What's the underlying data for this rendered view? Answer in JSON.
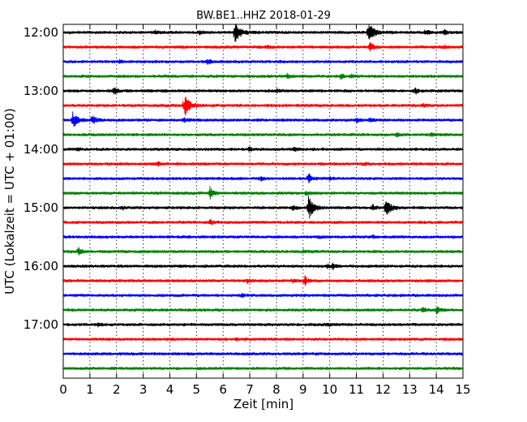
{
  "chart_data": {
    "type": "line",
    "title": "BW.BE1..HHZ 2018-01-29",
    "xlabel": "Zeit  [min]",
    "ylabel": "UTC (Lokalzeit = UTC + 01:00)",
    "xlim": [
      0,
      15
    ],
    "x_ticks": [
      "0",
      "1",
      "2",
      "3",
      "4",
      "5",
      "6",
      "7",
      "8",
      "9",
      "10",
      "11",
      "12",
      "13",
      "14",
      "15"
    ],
    "y_tick_labels": [
      "12:00",
      "13:00",
      "14:00",
      "15:00",
      "16:00",
      "17:00"
    ],
    "grid": "vertical-dotted",
    "trace_colors": [
      "#000000",
      "#ff0000",
      "#0000ff",
      "#008000"
    ],
    "traces": [
      {
        "start": "12:00",
        "events": [
          {
            "t": 6.45,
            "amp": 15
          },
          {
            "t": 11.45,
            "amp": 15
          },
          {
            "t": 13.6,
            "amp": 4
          },
          {
            "t": 14.3,
            "amp": 4
          },
          {
            "t": 3.45,
            "amp": 2
          },
          {
            "t": 5.1,
            "amp": 2
          }
        ]
      },
      {
        "start": "12:15",
        "events": [
          {
            "t": 11.5,
            "amp": 8
          },
          {
            "t": 14.3,
            "amp": 2
          },
          {
            "t": 7.6,
            "amp": 2
          }
        ]
      },
      {
        "start": "12:30",
        "events": [
          {
            "t": 5.4,
            "amp": 4
          },
          {
            "t": 2.1,
            "amp": 1.5
          }
        ]
      },
      {
        "start": "12:45",
        "events": [
          {
            "t": 8.4,
            "amp": 3
          },
          {
            "t": 10.4,
            "amp": 3
          },
          {
            "t": 10.8,
            "amp": 2
          }
        ]
      },
      {
        "start": "13:00",
        "events": [
          {
            "t": 1.9,
            "amp": 5
          },
          {
            "t": 13.2,
            "amp": 4
          },
          {
            "t": 8.0,
            "amp": 2
          }
        ]
      },
      {
        "start": "13:15",
        "events": [
          {
            "t": 4.55,
            "amp": 14
          },
          {
            "t": 13.5,
            "amp": 2
          }
        ]
      },
      {
        "start": "13:30",
        "events": [
          {
            "t": 0.35,
            "amp": 10
          },
          {
            "t": 1.1,
            "amp": 8
          },
          {
            "t": 4.5,
            "amp": 3
          },
          {
            "t": 11.0,
            "amp": 4
          },
          {
            "t": 11.5,
            "amp": 3
          }
        ]
      },
      {
        "start": "13:45",
        "events": [
          {
            "t": 12.5,
            "amp": 2
          },
          {
            "t": 13.8,
            "amp": 2
          }
        ]
      },
      {
        "start": "14:00",
        "events": [
          {
            "t": 6.95,
            "amp": 3
          },
          {
            "t": 8.65,
            "amp": 3
          },
          {
            "t": 0.5,
            "amp": 2
          }
        ]
      },
      {
        "start": "14:15",
        "events": [
          {
            "t": 3.55,
            "amp": 2
          },
          {
            "t": 11.3,
            "amp": 2
          }
        ]
      },
      {
        "start": "14:30",
        "events": [
          {
            "t": 9.2,
            "amp": 6
          },
          {
            "t": 7.4,
            "amp": 3
          },
          {
            "t": 10.0,
            "amp": 2
          }
        ]
      },
      {
        "start": "14:45",
        "events": [
          {
            "t": 5.5,
            "amp": 8
          },
          {
            "t": 9.1,
            "amp": 3
          }
        ]
      },
      {
        "start": "15:00",
        "events": [
          {
            "t": 9.2,
            "amp": 17
          },
          {
            "t": 12.1,
            "amp": 12
          },
          {
            "t": 11.6,
            "amp": 4
          },
          {
            "t": 8.6,
            "amp": 3
          },
          {
            "t": 2.2,
            "amp": 2
          }
        ]
      },
      {
        "start": "15:15",
        "events": [
          {
            "t": 5.5,
            "amp": 4
          }
        ]
      },
      {
        "start": "15:30",
        "events": [
          {
            "t": 11.6,
            "amp": 2
          },
          {
            "t": 9.6,
            "amp": 1.5
          }
        ]
      },
      {
        "start": "15:45",
        "events": [
          {
            "t": 0.55,
            "amp": 6
          },
          {
            "t": 9.0,
            "amp": 2
          }
        ]
      },
      {
        "start": "16:00",
        "events": [
          {
            "t": 10.1,
            "amp": 3
          },
          {
            "t": 9.9,
            "amp": 2
          }
        ]
      },
      {
        "start": "16:15",
        "events": [
          {
            "t": 9.05,
            "amp": 6
          },
          {
            "t": 6.9,
            "amp": 3
          },
          {
            "t": 8.6,
            "amp": 2
          }
        ]
      },
      {
        "start": "16:30",
        "events": [
          {
            "t": 6.7,
            "amp": 2
          }
        ]
      },
      {
        "start": "16:45",
        "events": [
          {
            "t": 13.5,
            "amp": 4
          },
          {
            "t": 14.0,
            "amp": 5
          }
        ]
      },
      {
        "start": "17:00",
        "events": [
          {
            "t": 1.3,
            "amp": 2
          },
          {
            "t": 9.9,
            "amp": 1.5
          }
        ]
      },
      {
        "start": "17:15",
        "events": [
          {
            "t": 6.5,
            "amp": 1
          }
        ]
      },
      {
        "start": "17:30",
        "events": []
      },
      {
        "start": "17:45",
        "events": []
      }
    ]
  }
}
